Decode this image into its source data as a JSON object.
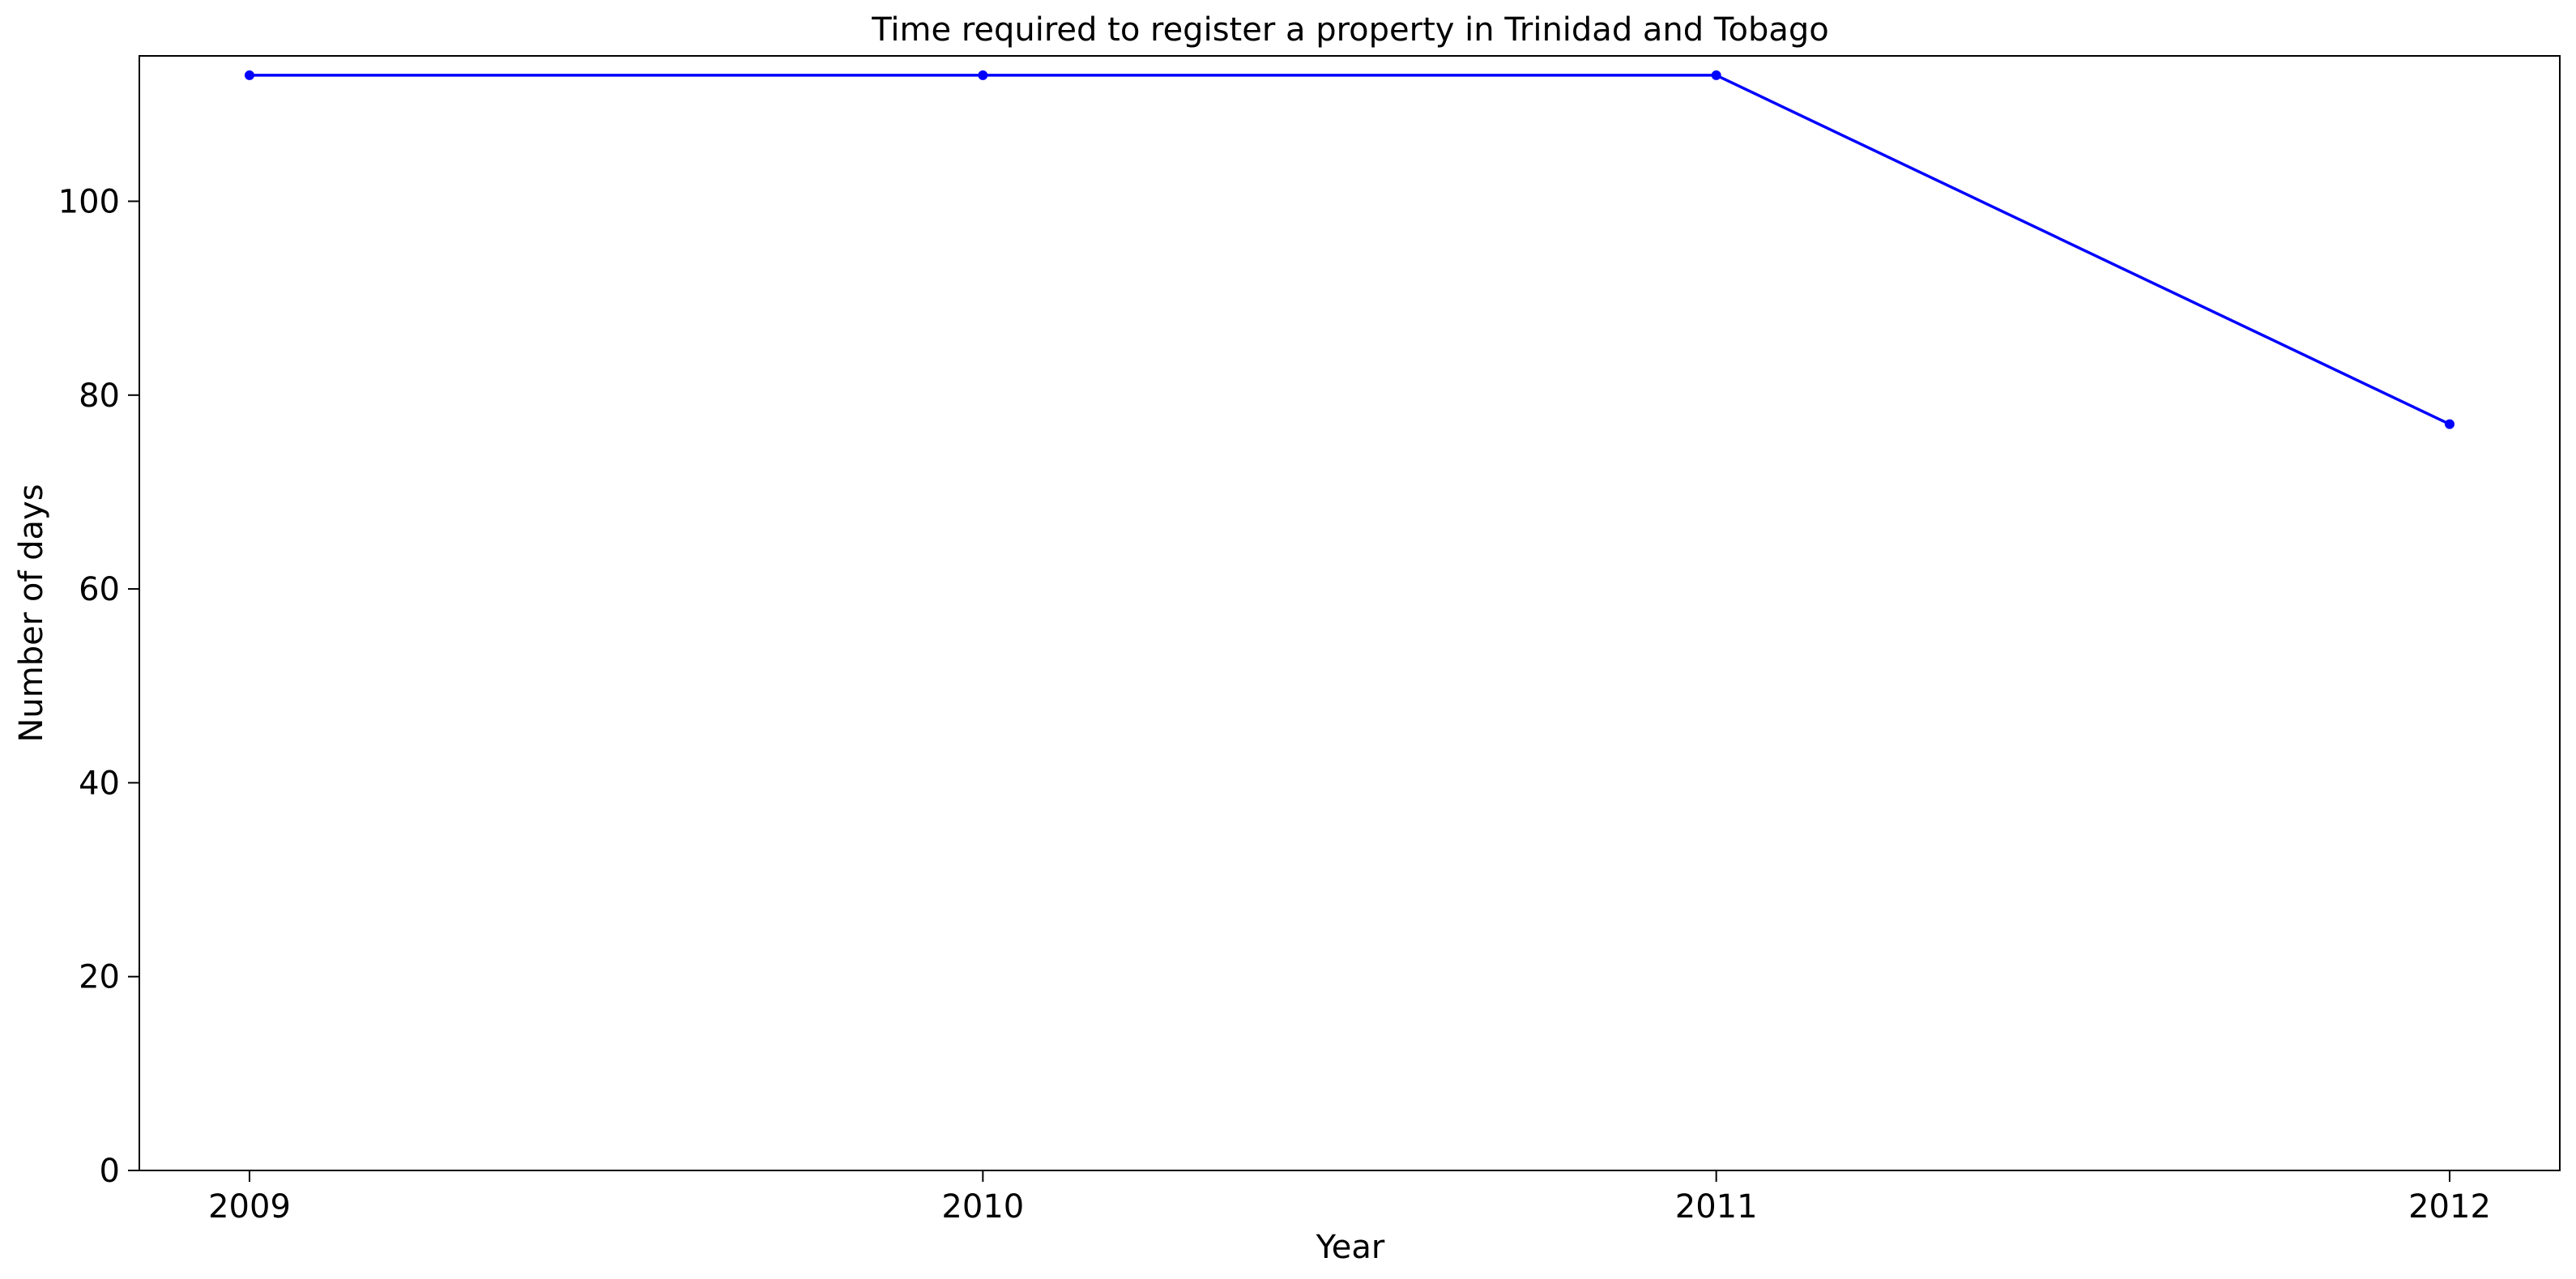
{
  "chart_data": {
    "type": "line",
    "title": "Time required to register a property in Trinidad and Tobago",
    "xlabel": "Year",
    "ylabel": "Number of days",
    "x": [
      "2009",
      "2010",
      "2011",
      "2012"
    ],
    "series": [
      {
        "values": [
          113,
          113,
          113,
          77
        ],
        "color": "#0000ff",
        "marker": "circle"
      }
    ],
    "ylim": [
      0,
      115
    ],
    "yticks": [
      0,
      20,
      40,
      60,
      80,
      100
    ],
    "grid": false,
    "legend": "none"
  }
}
